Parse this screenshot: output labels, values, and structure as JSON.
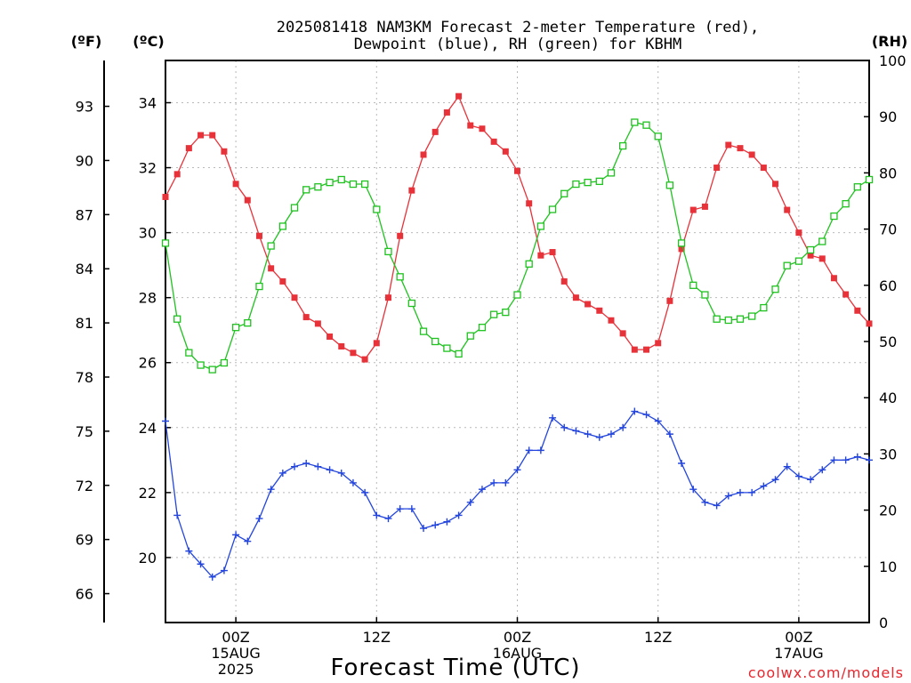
{
  "chart_data": {
    "type": "line",
    "title_line1": "2025081418 NAM3KM Forecast 2-meter Temperature (red),",
    "title_line2": "Dewpoint (blue), RH (green) for KBHM",
    "xlabel": "Forecast Time (UTC)",
    "credit": "coolwx.com/models",
    "units": {
      "fahrenheit": "(ºF)",
      "celsius": "(ºC)",
      "rh": "(RH)"
    },
    "grid": true,
    "x_range_hours": [
      0,
      60
    ],
    "celsius_axis": {
      "range": [
        18.0,
        35.3
      ],
      "ticks": [
        "34",
        "32",
        "30",
        "28",
        "26",
        "24",
        "22",
        "20"
      ],
      "tick_values": [
        34,
        32,
        30,
        28,
        26,
        24,
        22,
        20
      ]
    },
    "fahrenheit_axis": {
      "ticks": [
        "93",
        "90",
        "87",
        "84",
        "81",
        "78",
        "75",
        "72",
        "69",
        "66"
      ],
      "tick_values": [
        93,
        90,
        87,
        84,
        81,
        78,
        75,
        72,
        69,
        66
      ]
    },
    "rh_axis": {
      "range": [
        0,
        100
      ],
      "ticks": [
        "100",
        "90",
        "80",
        "70",
        "60",
        "50",
        "40",
        "30",
        "20",
        "10",
        "0"
      ],
      "tick_values": [
        100,
        90,
        80,
        70,
        60,
        50,
        40,
        30,
        20,
        10,
        0
      ]
    },
    "x_ticks": [
      {
        "hour": 6,
        "line1": "00Z",
        "line2": "15AUG",
        "line3": "2025"
      },
      {
        "hour": 18,
        "line1": "12Z",
        "line2": "",
        "line3": ""
      },
      {
        "hour": 30,
        "line1": "00Z",
        "line2": "16AUG",
        "line3": ""
      },
      {
        "hour": 42,
        "line1": "12Z",
        "line2": "",
        "line3": ""
      },
      {
        "hour": 54,
        "line1": "00Z",
        "line2": "17AUG",
        "line3": ""
      }
    ],
    "series": [
      {
        "name": "Temperature",
        "color": "#e8323a",
        "axis": "celsius",
        "marker": "filled-square",
        "values": [
          31.1,
          31.8,
          32.6,
          33.0,
          33.0,
          32.5,
          31.5,
          31.0,
          29.9,
          28.9,
          28.5,
          28.0,
          27.4,
          27.2,
          26.8,
          26.5,
          26.3,
          26.1,
          26.6,
          28.0,
          29.9,
          31.3,
          32.4,
          33.1,
          33.7,
          34.2,
          33.3,
          33.2,
          32.8,
          32.5,
          31.9,
          30.9,
          29.3,
          29.4,
          28.5,
          28.0,
          27.8,
          27.6,
          27.3,
          26.9,
          26.4,
          26.4,
          26.6,
          27.9,
          29.5,
          30.7,
          30.8,
          32.0,
          32.7,
          32.6,
          32.4,
          32.0,
          31.5,
          30.7,
          30.0,
          29.3,
          29.2,
          28.6,
          28.1,
          27.6,
          27.2
        ]
      },
      {
        "name": "Dewpoint",
        "color": "#2345dd",
        "axis": "celsius",
        "marker": "plus",
        "values": [
          24.2,
          21.3,
          20.2,
          19.8,
          19.4,
          19.6,
          20.7,
          20.5,
          21.2,
          22.1,
          22.6,
          22.8,
          22.9,
          22.8,
          22.7,
          22.6,
          22.3,
          22.0,
          21.3,
          21.2,
          21.5,
          21.5,
          20.9,
          21.0,
          21.1,
          21.3,
          21.7,
          22.1,
          22.3,
          22.3,
          22.7,
          23.3,
          23.3,
          24.3,
          24.0,
          23.9,
          23.8,
          23.7,
          23.8,
          24.0,
          24.5,
          24.4,
          24.2,
          23.8,
          22.9,
          22.1,
          21.7,
          21.6,
          21.9,
          22.0,
          22.0,
          22.2,
          22.4,
          22.8,
          22.5,
          22.4,
          22.7,
          23.0,
          23.0,
          23.1,
          23.0
        ]
      },
      {
        "name": "RH",
        "color": "#1fc21f",
        "axis": "rh",
        "marker": "open-square",
        "values": [
          67.5,
          54.0,
          48.0,
          45.8,
          45.0,
          46.2,
          52.5,
          53.3,
          59.8,
          67.0,
          70.5,
          73.8,
          77.0,
          77.5,
          78.3,
          78.8,
          78.0,
          78.0,
          73.5,
          66.0,
          61.5,
          56.8,
          51.8,
          50.0,
          48.8,
          47.8,
          51.0,
          52.5,
          54.8,
          55.2,
          58.3,
          63.8,
          70.5,
          73.5,
          76.3,
          78.0,
          78.3,
          78.5,
          80.0,
          84.8,
          89.0,
          88.5,
          86.5,
          77.8,
          67.5,
          60.0,
          58.3,
          54.0,
          53.8,
          54.0,
          54.5,
          56.0,
          59.3,
          63.5,
          64.3,
          66.3,
          67.8,
          72.3,
          74.5,
          77.5,
          78.8
        ]
      }
    ]
  }
}
